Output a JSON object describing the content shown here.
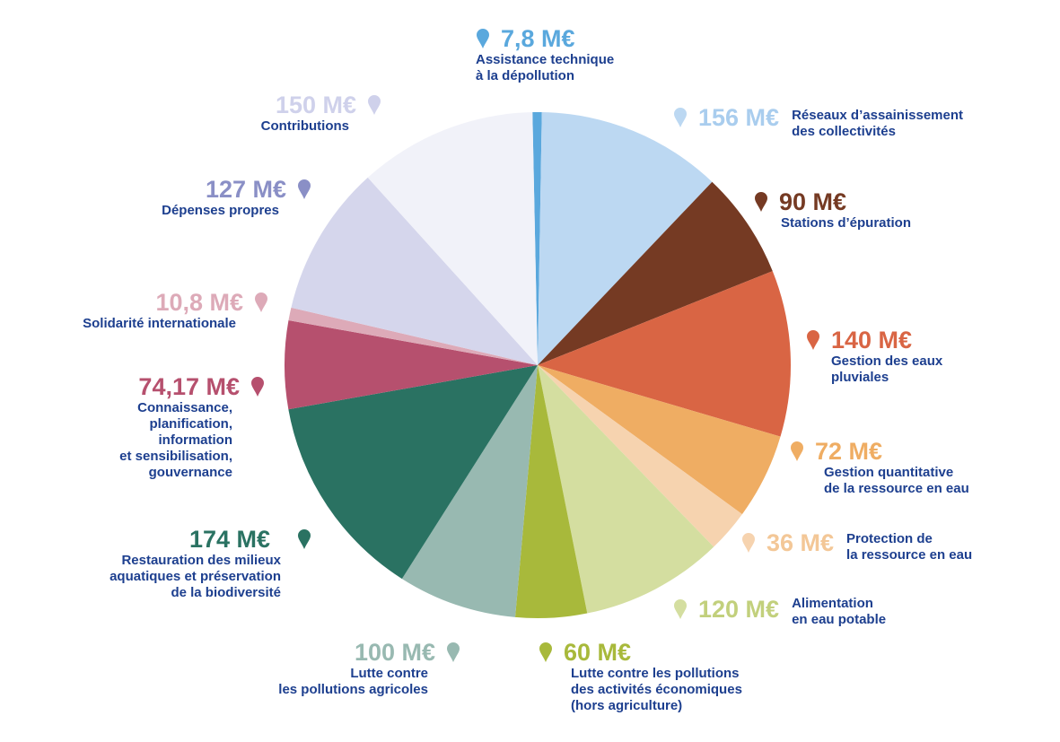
{
  "chart_data": {
    "type": "pie",
    "unit": "M€",
    "slices": [
      {
        "value_label": "7,8 M€",
        "value": 7.8,
        "label": "Assistance technique\nà la dépollution",
        "color": "#5aa8dd"
      },
      {
        "value_label": "156 M€",
        "value": 156,
        "label": "Réseaux d’assainissement\ndes collectivités",
        "color": "#bcd8f2"
      },
      {
        "value_label": "90 M€",
        "value": 90,
        "label": "Stations d’épuration",
        "color": "#753a23"
      },
      {
        "value_label": "140 M€",
        "value": 140,
        "label": "Gestion des eaux\npluviales",
        "color": "#d96544"
      },
      {
        "value_label": "72 M€",
        "value": 72,
        "label": "Gestion quantitative\nde la ressource en eau",
        "color": "#efad63"
      },
      {
        "value_label": "36 M€",
        "value": 36,
        "label": "Protection de\nla ressource en eau",
        "color": "#f6d3af"
      },
      {
        "value_label": "120 M€",
        "value": 120,
        "label": "Alimentation\nen eau potable",
        "color": "#d4dea0"
      },
      {
        "value_label": "60 M€",
        "value": 60,
        "label": "Lutte contre les pollutions\ndes activités économiques\n(hors agriculture)",
        "color": "#a8b93b"
      },
      {
        "value_label": "100 M€",
        "value": 100,
        "label": "Lutte contre\nles pollutions agricoles",
        "color": "#98b9b1"
      },
      {
        "value_label": "174 M€",
        "value": 174,
        "label": "Restauration des milieux\naquatiques et préservation\nde la biodiversité",
        "color": "#2a7262"
      },
      {
        "value_label": "74,17 M€",
        "value": 74.17,
        "label": "Connaissance,\nplanification,\ninformation\net sensibilisation,\ngouvernance",
        "color": "#b6506e"
      },
      {
        "value_label": "10,8 M€",
        "value": 10.8,
        "label": "Solidarité internationale",
        "color": "#ddaab8"
      },
      {
        "value_label": "127 M€",
        "value": 127,
        "label": "Dépenses propres",
        "color": "#d5d6ec"
      },
      {
        "value_label": "150 M€",
        "value": 150,
        "label": "Contributions",
        "color": "#f1f2f9"
      }
    ]
  },
  "colors": {
    "label_text": "#1d3f8f",
    "pin_colors": [
      "#5aa8dd",
      "#bcd8f2",
      "#753a23",
      "#d96544",
      "#efad63",
      "#f6d3af",
      "#d4dea0",
      "#a8b93b",
      "#98b9b1",
      "#2a7262",
      "#b6506e",
      "#ddaab8",
      "#8a8fc6",
      "#cfd1eb"
    ],
    "value_colors": [
      "#5aa8dd",
      "#a9cdee",
      "#753a23",
      "#d96544",
      "#efad63",
      "#f3c797",
      "#c2d07c",
      "#a8b93b",
      "#98b9b1",
      "#2a7262",
      "#b6506e",
      "#ddaab8",
      "#8a8fc6",
      "#cfd1eb"
    ]
  }
}
